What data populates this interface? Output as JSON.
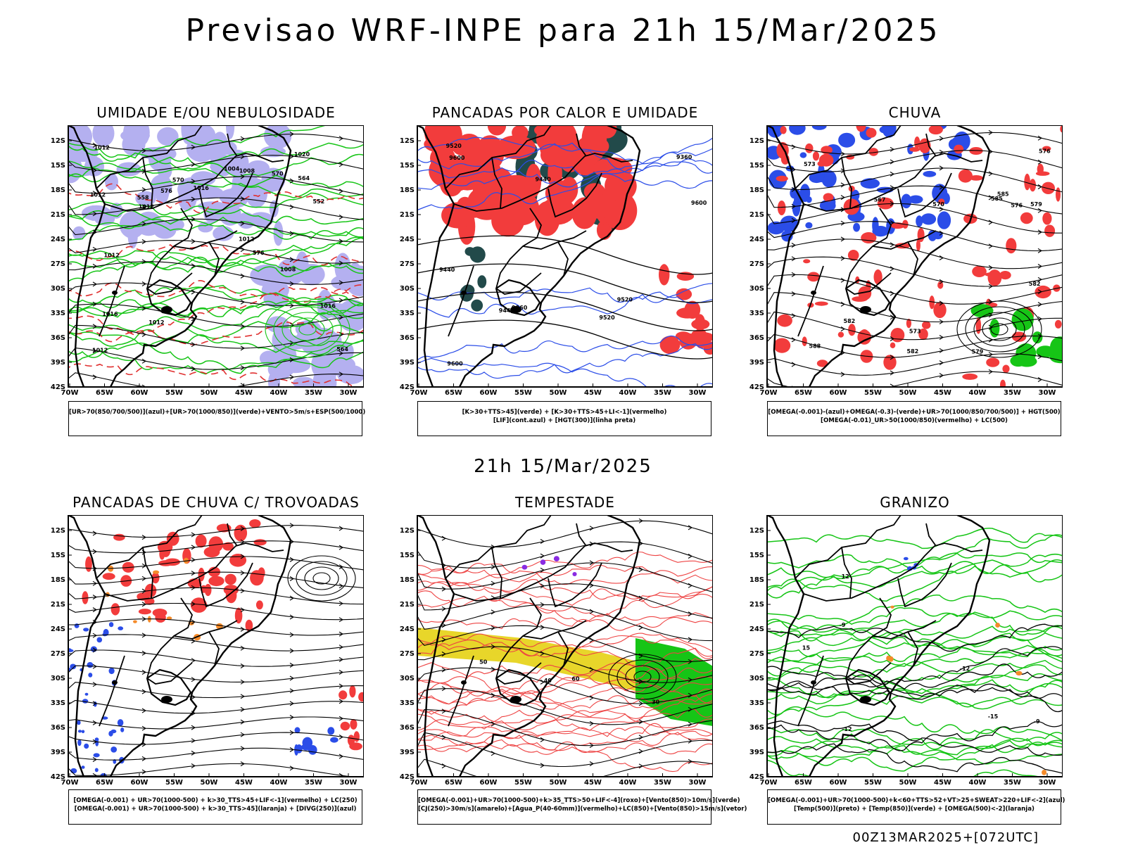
{
  "header": {
    "title": "Previsao WRF-INPE  para 21h 15/Mar/2025"
  },
  "subheader": {
    "title": "21h 15/Mar/2025"
  },
  "footer": {
    "run": "00Z13MAR2025+[072UTC]"
  },
  "axes": {
    "lat": [
      "12S",
      "15S",
      "18S",
      "21S",
      "24S",
      "27S",
      "30S",
      "33S",
      "36S",
      "39S",
      "42S"
    ],
    "lon": [
      "70W",
      "65W",
      "60W",
      "55W",
      "50W",
      "45W",
      "40W",
      "35W",
      "30W"
    ]
  },
  "colors": {
    "lilac": "#b4b0f0",
    "green": "#16c516",
    "red": "#f23c3c",
    "blue": "#2b4de8",
    "darkteal": "#224a4a",
    "yellow": "#e8d62a",
    "orange": "#f58b2a",
    "black": "#000000"
  },
  "panels": [
    {
      "title": "UMIDADE E/OU NEBULOSIDADE",
      "legend": [
        "[UR>70(850/700/500)](azul)+[UR>70(1000/850)](verde)+VENTO>5m/s+ESP(500/1000)"
      ],
      "contour_labels": [
        "1012",
        "1012",
        "1012",
        "1016",
        "1012",
        "1016",
        "1020",
        "1012",
        "1008",
        "1004",
        "1008",
        "1012",
        "1016",
        "1012",
        "576",
        "576",
        "570",
        "564",
        "564",
        "558",
        "552",
        "570"
      ]
    },
    {
      "title": "PANCADAS POR CALOR E UMIDADE",
      "legend": [
        "[K>30+TTS>45](verde) + [K>30+TTS>45+LI<-1](vermelho)",
        "[LIF](cont.azul) + [HGT(300)](linha preta)"
      ],
      "contour_labels": [
        "9600",
        "9520",
        "9440",
        "9360",
        "9600",
        "9520",
        "9440",
        "9360",
        "9600",
        "9520",
        "9440"
      ]
    },
    {
      "title": "CHUVA",
      "legend": [
        "[OMEGA(-0.001)-(azul)+OMEGA(-0.3)-(verde)+UR>70(1000/850/700/500)] + HGT(500)",
        "[OMEGA(-0.01)_UR>50(1000/850)(vermelho) + LC(500)"
      ],
      "contour_labels": [
        "588",
        "585",
        "582",
        "582",
        "585",
        "582",
        "579",
        "576",
        "573",
        "576",
        "579",
        "573",
        "570",
        "567"
      ]
    },
    {
      "title": "PANCADAS DE CHUVA C/ TROVOADAS",
      "legend": [
        "[OMEGA(-0.001) + UR>70(1000-500) + k>30_TTS>45+LIF<-1](vermelho) + LC(250)",
        "[OMEGA(-0.001) + UR>70(1000-500) + k>30_TTS>45](laranja) + [DIVG(250)](azul)"
      ],
      "contour_labels": []
    },
    {
      "title": "TEMPESTADE",
      "legend": [
        "[OMEGA(-0.001)+UR>70(1000-500)+k>35_TTS>50+LIF<-4](roxo)+[Vento(850)>10m/s](verde)",
        "[CJ(250)>30m/s](amarelo)+[Agua_P(40-60mm)](vermelho)+LC(850)+[Vento(850)>15m/s](vetor)"
      ],
      "contour_labels": [
        "50",
        "40",
        "30",
        "60"
      ]
    },
    {
      "title": "GRANIZO",
      "legend": [
        "[OMEGA(-0.001)+UR>70(1000-500)+k<60+TTS>52+VT>25+SWEAT>220+LIF<-2](azul)",
        "[Temp(500)](preto) + [Temp(850)](verde) + [OMEGA(500)<-2](laranja)"
      ],
      "contour_labels": [
        "-9",
        "-12",
        "-15",
        "15",
        "12",
        "-9",
        "-12"
      ]
    }
  ]
}
